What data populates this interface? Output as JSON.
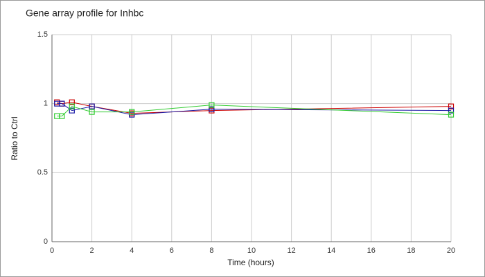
{
  "chart_data": {
    "type": "line",
    "title": "Gene array profile for Inhbc",
    "x_label": "Time (hours)",
    "y_label": "Ratio to Ctrl",
    "x": [
      0.25,
      0.5,
      1,
      2,
      4,
      8,
      20
    ],
    "series": [
      {
        "color": "#cc0000",
        "values": [
          1.01,
          1.0,
          1.01,
          0.98,
          0.93,
          0.95,
          0.98
        ]
      },
      {
        "color": "#1a1aa6",
        "values": [
          1.0,
          1.0,
          0.95,
          0.98,
          0.92,
          0.96,
          0.95
        ]
      },
      {
        "color": "#33cc33",
        "values": [
          0.91,
          0.91,
          0.98,
          0.94,
          0.94,
          0.99,
          0.92
        ]
      }
    ],
    "xlim": [
      0,
      20
    ],
    "xticks": [
      0,
      2,
      4,
      6,
      8,
      10,
      12,
      14,
      16,
      18,
      20
    ],
    "ylim": [
      0,
      1.5
    ],
    "yticks": [
      0,
      0.5,
      1,
      1.5
    ],
    "grid": true
  }
}
